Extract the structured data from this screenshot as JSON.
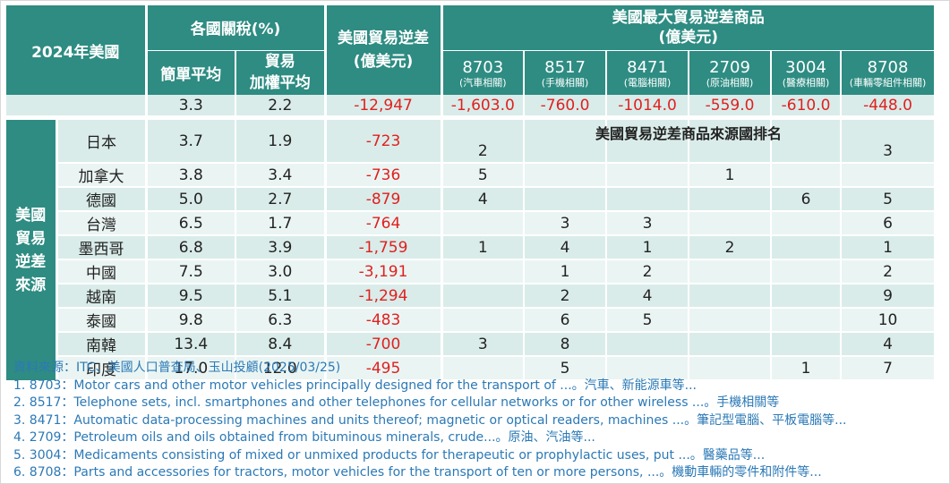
{
  "header": {
    "year_label": "2024年美國",
    "tariff_group": "各國關稅(%)",
    "simple_avg": "簡單平均",
    "trade_weighted_line1": "貿易",
    "trade_weighted_line2": "加權平均",
    "deficit_line1": "美國貿易逆差",
    "deficit_line2": "(億美元)",
    "products_line1": "美國最大貿易逆差商品",
    "products_line2": "(億美元)",
    "side_label": [
      "美國",
      "貿易",
      "逆差",
      "來源"
    ],
    "ranking_title": "美國貿易逆差商品來源國排名"
  },
  "colors": {
    "header_bg": "#2e8c82",
    "row_light": "#d9ece9",
    "row_lighter": "#eaf5f3",
    "negative": "#e02020",
    "notes": "#2b79b6"
  },
  "chart_data": {
    "type": "table",
    "products": [
      {
        "code": "8703",
        "sub": "(汽車相關)",
        "deficit": "-1,603.0"
      },
      {
        "code": "8517",
        "sub": "(手機相關)",
        "deficit": "-760.0"
      },
      {
        "code": "8471",
        "sub": "(電腦相關)",
        "deficit": "-1014.0"
      },
      {
        "code": "2709",
        "sub": "(原油相關)",
        "deficit": "-559.0"
      },
      {
        "code": "3004",
        "sub": "(醫療相關)",
        "deficit": "-610.0"
      },
      {
        "code": "8708",
        "sub": "(車輛零組件相關)",
        "deficit": "-448.0"
      }
    ],
    "us_row": {
      "simple": "3.3",
      "weighted": "2.2",
      "deficit": "-12,947"
    },
    "countries": [
      {
        "name": "日本",
        "simple": "3.7",
        "weighted": "1.9",
        "deficit": "-723",
        "ranks": [
          "2",
          "",
          "",
          "",
          "",
          "3"
        ]
      },
      {
        "name": "加拿大",
        "simple": "3.8",
        "weighted": "3.4",
        "deficit": "-736",
        "ranks": [
          "5",
          "",
          "",
          "1",
          "",
          ""
        ]
      },
      {
        "name": "德國",
        "simple": "5.0",
        "weighted": "2.7",
        "deficit": "-879",
        "ranks": [
          "4",
          "",
          "",
          "",
          "6",
          "5"
        ]
      },
      {
        "name": "台灣",
        "simple": "6.5",
        "weighted": "1.7",
        "deficit": "-764",
        "ranks": [
          "",
          "3",
          "3",
          "",
          "",
          "6"
        ]
      },
      {
        "name": "墨西哥",
        "simple": "6.8",
        "weighted": "3.9",
        "deficit": "-1,759",
        "ranks": [
          "1",
          "4",
          "1",
          "2",
          "",
          "1"
        ]
      },
      {
        "name": "中國",
        "simple": "7.5",
        "weighted": "3.0",
        "deficit": "-3,191",
        "ranks": [
          "",
          "1",
          "2",
          "",
          "",
          "2"
        ]
      },
      {
        "name": "越南",
        "simple": "9.5",
        "weighted": "5.1",
        "deficit": "-1,294",
        "ranks": [
          "",
          "2",
          "4",
          "",
          "",
          "9"
        ]
      },
      {
        "name": "泰國",
        "simple": "9.8",
        "weighted": "6.3",
        "deficit": "-483",
        "ranks": [
          "",
          "6",
          "5",
          "",
          "",
          "10"
        ]
      },
      {
        "name": "南韓",
        "simple": "13.4",
        "weighted": "8.4",
        "deficit": "-700",
        "ranks": [
          "3",
          "8",
          "",
          "",
          "",
          "4"
        ]
      },
      {
        "name": "印度",
        "simple": "17.0",
        "weighted": "12.0",
        "deficit": "-495",
        "ranks": [
          "",
          "5",
          "",
          "",
          "1",
          "7"
        ]
      }
    ]
  },
  "notes": {
    "source": "資料來源：ITC、美國人口普查局、玉山投顧(2025/03/25)",
    "items": [
      "1.  8703：Motor cars and other motor vehicles principally designed for the transport of ...。汽車、新能源車等...",
      "2.  8517：Telephone sets, incl. smartphones and other telephones for cellular networks or for other wireless ...。手機相關等",
      "3.  8471：Automatic data-processing machines and units thereof; magnetic or optical readers, machines ...。筆記型電腦、平板電腦等...",
      "4.  2709：Petroleum oils and oils obtained from bituminous minerals, crude...。原油、汽油等...",
      "5.  3004：Medicaments consisting of mixed or unmixed products for therapeutic or prophylactic uses, put ...。醫藥品等...",
      "6.  8708：Parts and accessories for tractors, motor vehicles for the transport of ten or more persons, ...。機動車輛的零件和附件等..."
    ]
  }
}
